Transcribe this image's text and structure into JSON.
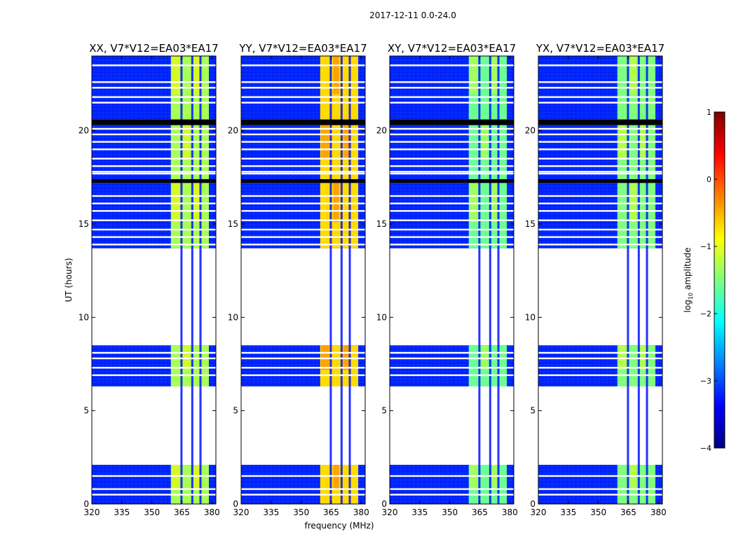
{
  "figure": {
    "suptitle": "2017-12-11 0.0-24.0",
    "xlabel": "frequency (MHz)",
    "ylabel": "UT (hours)"
  },
  "colorbar": {
    "label_prefix": "log",
    "label_sub": "10",
    "label_suffix": " amplitude",
    "range": [
      -4,
      1
    ],
    "ticks": [
      1,
      0,
      -1,
      -2,
      -3,
      -4
    ],
    "tick_labels": [
      "1",
      "0",
      "−1",
      "−2",
      "−3",
      "−4"
    ],
    "stops": [
      "#00007f",
      "#0000ff",
      "#007fff",
      "#00ffff",
      "#7fff7f",
      "#ffff00",
      "#ff7f00",
      "#ff0000",
      "#7f0000"
    ]
  },
  "chart_data": {
    "type": "heatmap",
    "x": {
      "min": 320,
      "max": 382,
      "ticks": [
        320,
        335,
        350,
        365,
        380
      ],
      "tick_labels": [
        "320",
        "335",
        "350",
        "365",
        "380"
      ]
    },
    "y": {
      "min": 0,
      "max": 24,
      "ticks": [
        0,
        5,
        10,
        15,
        20
      ],
      "tick_labels": [
        "0",
        "5",
        "10",
        "15",
        "20"
      ]
    },
    "data_segments_ut": [
      [
        0.0,
        2.1
      ],
      [
        6.3,
        8.5
      ],
      [
        13.7,
        17.2
      ],
      [
        17.4,
        20.3
      ],
      [
        20.6,
        24.0
      ]
    ],
    "flagged_lines_ut": [
      0.5,
      0.8,
      1.5,
      6.9,
      7.3,
      7.8,
      8.1,
      13.9,
      14.3,
      14.7,
      15.2,
      15.7,
      16.1,
      16.5,
      17.7,
      17.8,
      18.1,
      18.5,
      19.0,
      19.4,
      19.8,
      20.1,
      21.5,
      21.8,
      22.3,
      22.6,
      23.5
    ],
    "rfi_band_mhz": [
      359.5,
      378.5
    ],
    "rfi_channel_gaps_mhz": [
      364.8,
      370.2,
      374.3
    ],
    "panels": [
      {
        "title": "XX, V7*V12=EA03*EA17",
        "band_level": -1.3
      },
      {
        "title": "YY, V7*V12=EA03*EA17",
        "band_level": -0.7
      },
      {
        "title": "XY, V7*V12=EA03*EA17",
        "band_level": -1.6
      },
      {
        "title": "YX, V7*V12=EA03*EA17",
        "band_level": -1.5
      }
    ],
    "background_level": -3.2
  }
}
